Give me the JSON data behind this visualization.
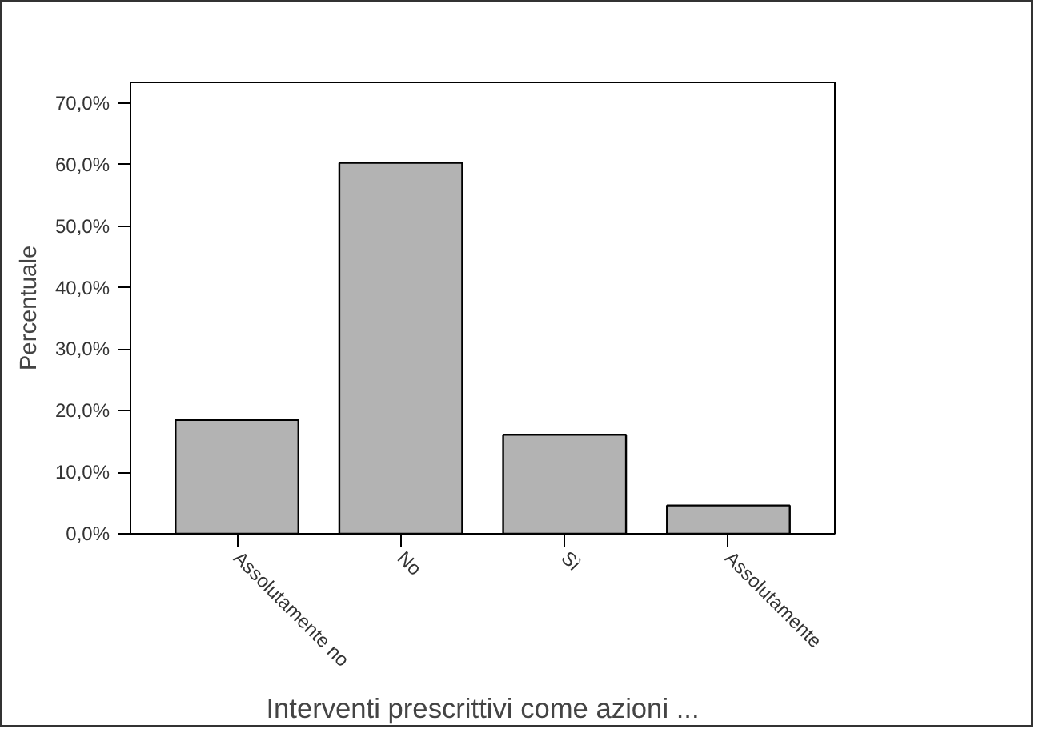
{
  "chart_data": {
    "type": "bar",
    "xlabel": "Interventi prescrittivi come azioni ...",
    "ylabel": "Percentuale",
    "categories": [
      "Assolutamente no",
      "No",
      "Sì",
      "Assolutamente"
    ],
    "values": [
      18.5,
      60.3,
      16.1,
      4.6
    ],
    "color": "#b3b3b3",
    "ylim": [
      0,
      73.4
    ],
    "yticks": [
      {
        "value": 0,
        "label": "0,0%"
      },
      {
        "value": 10,
        "label": "10,0%"
      },
      {
        "value": 20,
        "label": "20,0%"
      },
      {
        "value": 30,
        "label": "30,0%"
      },
      {
        "value": 40,
        "label": "40,0%"
      },
      {
        "value": 50,
        "label": "50,0%"
      },
      {
        "value": 60,
        "label": "60,0%"
      },
      {
        "value": 70,
        "label": "70,0%"
      }
    ],
    "grid": false
  }
}
